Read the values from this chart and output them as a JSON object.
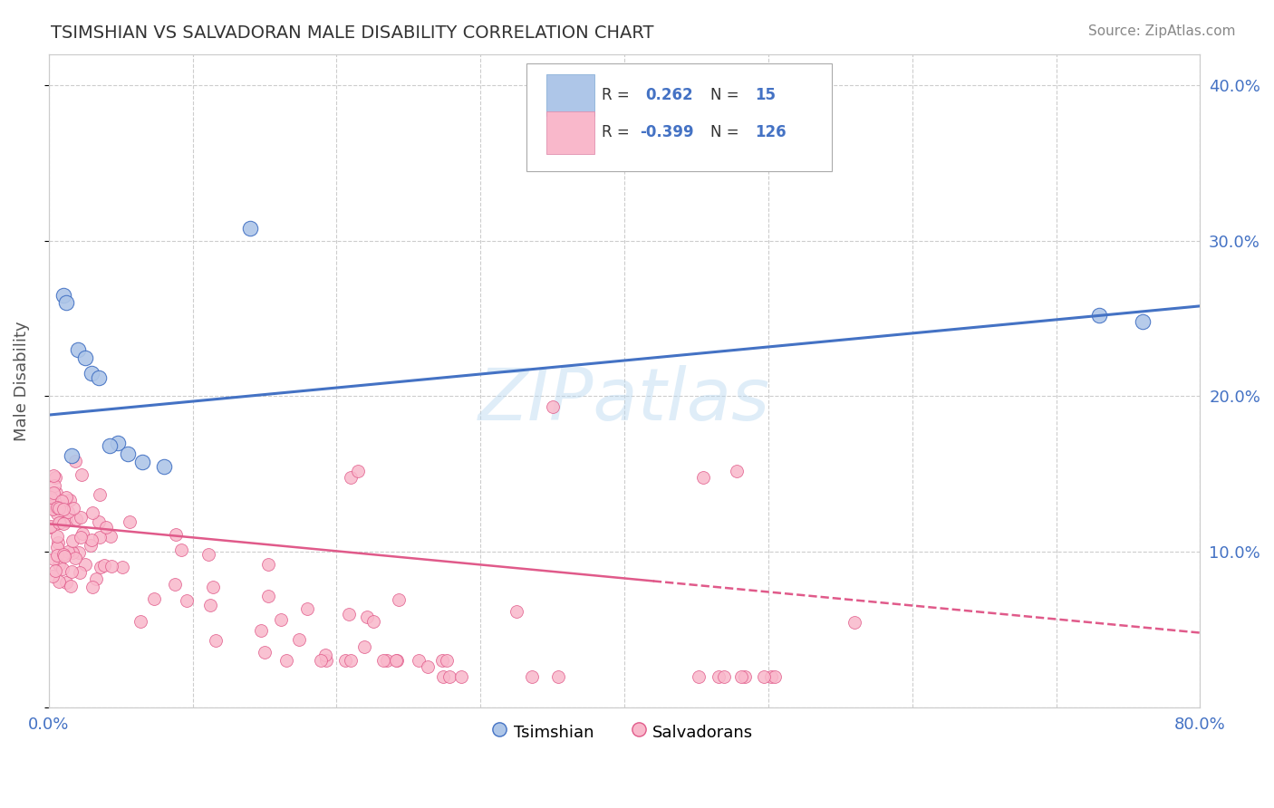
{
  "title": "TSIMSHIAN VS SALVADORAN MALE DISABILITY CORRELATION CHART",
  "source": "Source: ZipAtlas.com",
  "ylabel": "Male Disability",
  "xlim": [
    0.0,
    0.8
  ],
  "ylim": [
    0.0,
    0.42
  ],
  "xticks": [
    0.0,
    0.1,
    0.2,
    0.3,
    0.4,
    0.5,
    0.6,
    0.7,
    0.8
  ],
  "xticklabels": [
    "0.0%",
    "",
    "",
    "",
    "",
    "",
    "",
    "",
    "80.0%"
  ],
  "yticks": [
    0.0,
    0.1,
    0.2,
    0.3,
    0.4
  ],
  "yticklabels_right": [
    "",
    "10.0%",
    "20.0%",
    "30.0%",
    "40.0%"
  ],
  "legend_R1": "0.262",
  "legend_N1": "15",
  "legend_R2": "-0.399",
  "legend_N2": "126",
  "color_tsimshian": "#aec6e8",
  "color_salvadoran": "#f9b8cb",
  "line_color_tsimshian": "#4472c4",
  "line_color_salvadoran": "#e05a8a",
  "background_color": "#ffffff",
  "grid_color": "#c8c8c8",
  "watermark": "ZIPatlas",
  "ts_line_x": [
    0.0,
    0.8
  ],
  "ts_line_y": [
    0.188,
    0.258
  ],
  "sal_line_x": [
    0.0,
    0.8
  ],
  "sal_line_y": [
    0.118,
    0.048
  ]
}
